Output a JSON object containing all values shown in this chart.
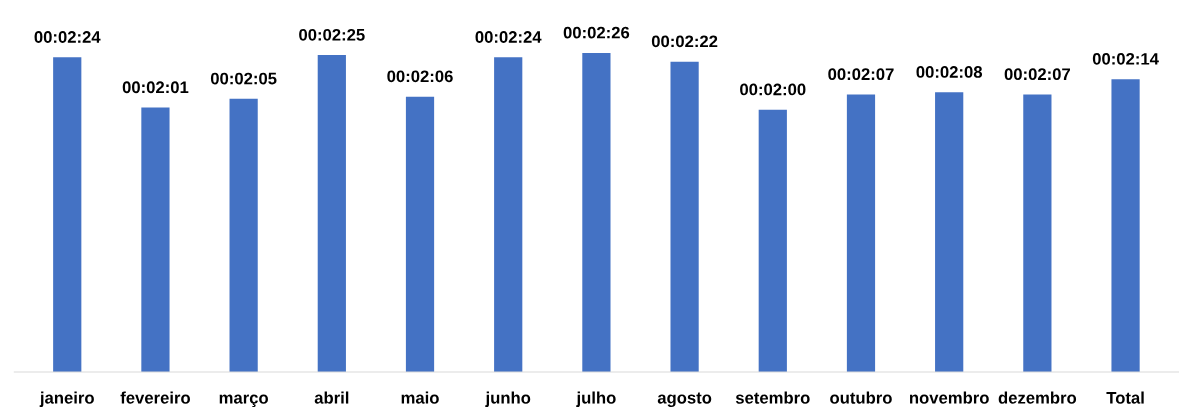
{
  "chart_data": {
    "type": "bar",
    "categories": [
      "janeiro",
      "fevereiro",
      "março",
      "abril",
      "maio",
      "junho",
      "julho",
      "agosto",
      "setembro",
      "outubro",
      "novembro",
      "dezembro",
      "Total"
    ],
    "values": [
      144,
      121,
      125,
      145,
      126,
      144,
      146,
      142,
      120,
      127,
      128,
      127,
      134
    ],
    "value_labels": [
      "00:02:24",
      "00:02:01",
      "00:02:05",
      "00:02:25",
      "00:02:06",
      "00:02:24",
      "00:02:26",
      "00:02:22",
      "00:02:00",
      "00:02:07",
      "00:02:08",
      "00:02:07",
      "00:02:14"
    ],
    "color": "#4472c4",
    "tick_labels": "x",
    "grid": false,
    "legend": false
  }
}
